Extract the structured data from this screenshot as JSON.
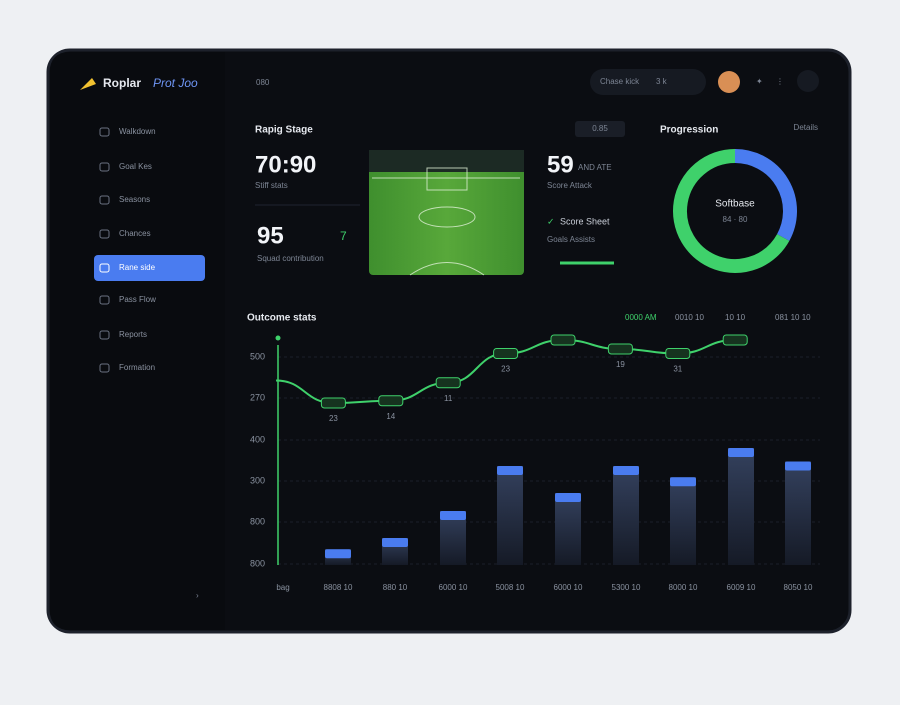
{
  "brand": {
    "name": "Roplar",
    "product": "Prot Joo"
  },
  "header": {
    "crumb": "080",
    "search": "Chase kick",
    "shortcut": "3 k"
  },
  "sidebar": {
    "items": [
      "Walkdown",
      "Goal Kes",
      "Seasons",
      "Chances",
      "Rane side",
      "Pass Flow",
      "Reports",
      "Formation"
    ],
    "active": 4
  },
  "match_card": {
    "title": "Rapig Stage",
    "button": "0.85",
    "score": "70:90",
    "score_sub": "Stiff stats",
    "rating": "95",
    "rating_delta": "7",
    "rating_sub": "Squad contribution",
    "side_value": "59",
    "side_value_note": "AND ATE",
    "side_sub": "Score Attack",
    "check_label": "Score Sheet",
    "check_sub": "Goals Assists"
  },
  "donut": {
    "title": "Progression",
    "link": "Details",
    "center_title": "Softbase",
    "center_sub": "84 · 80",
    "values": [
      33,
      67
    ],
    "colors": [
      "#4a7cf0",
      "#3fd16b"
    ]
  },
  "chart_data": {
    "type": "combo",
    "title": "Outcome stats",
    "legend": [
      "0000 AM",
      "0010 10",
      "10 10",
      "081 10 10"
    ],
    "y_labels": [
      "500",
      "270",
      "400",
      "300",
      "800",
      "800"
    ],
    "x_labels": [
      "bag",
      "8808 10",
      "880 10",
      "6000 10",
      "5008 10",
      "6000 10",
      "5300 10",
      "8000 10",
      "6009 10",
      "8050 10"
    ],
    "ylim": [
      0,
      100
    ],
    "line_labels": [
      "23",
      "14",
      "11",
      "23",
      "19",
      "31"
    ],
    "series": [
      {
        "name": "Outcome",
        "color": "#3fd16b",
        "values": [
          82,
          72,
          73,
          81,
          94,
          100,
          96,
          94,
          100
        ]
      },
      {
        "name": "Volume",
        "color": "#4a7cf0",
        "values": [
          7,
          12,
          24,
          44,
          32,
          44,
          39,
          52,
          46
        ]
      }
    ]
  }
}
